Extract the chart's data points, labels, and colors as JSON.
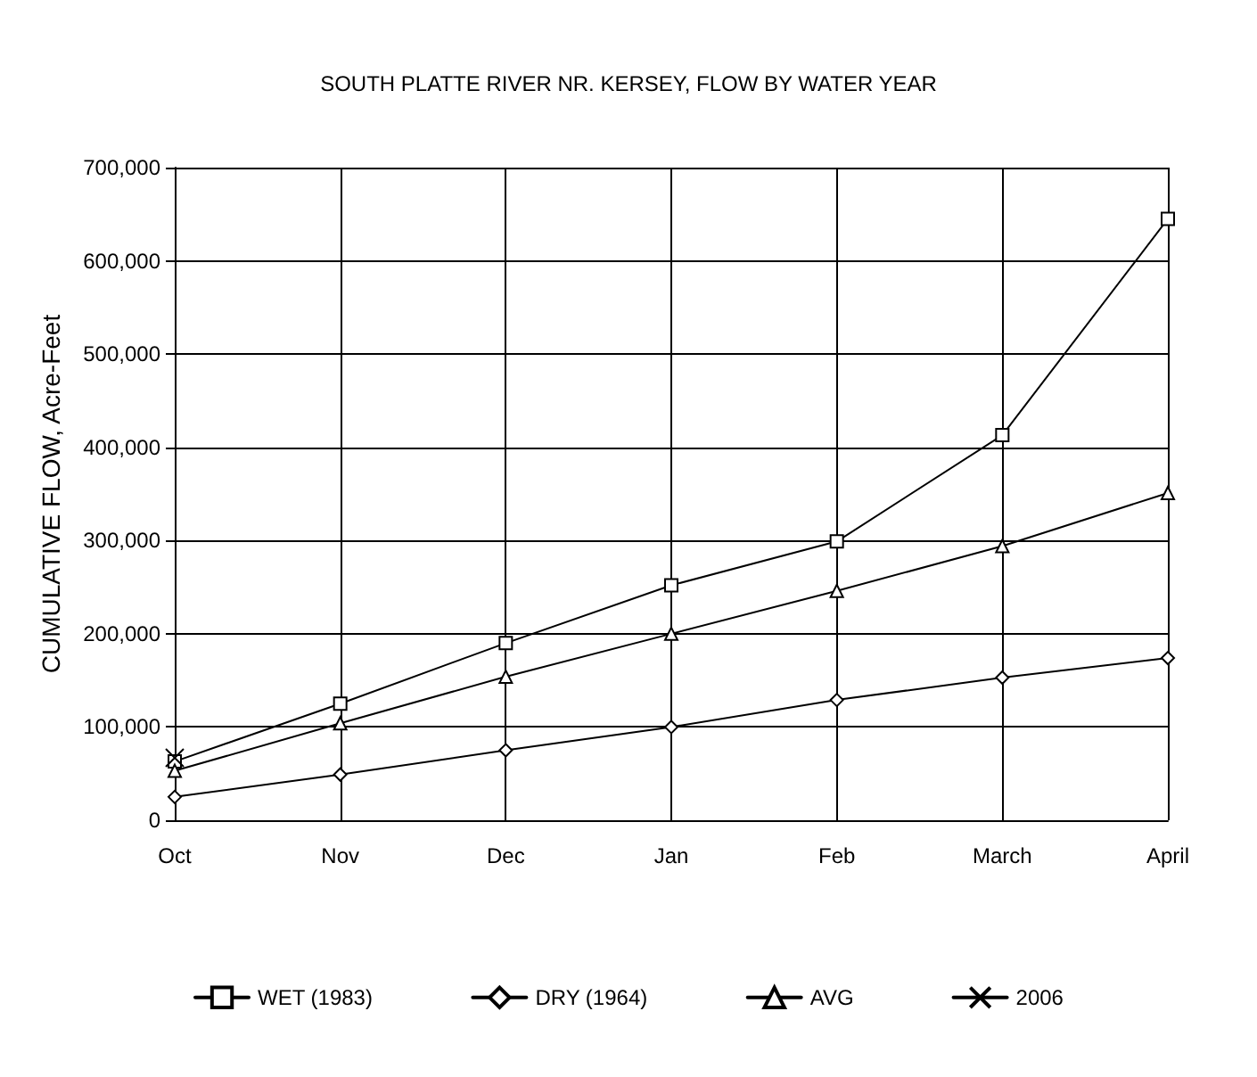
{
  "chart_data": {
    "type": "line",
    "title": "SOUTH PLATTE RIVER NR. KERSEY, FLOW BY WATER YEAR",
    "ylabel": "CUMULATIVE FLOW, Acre-Feet",
    "categories": [
      "Oct",
      "Nov",
      "Dec",
      "Jan",
      "Feb",
      "March",
      "April"
    ],
    "series": [
      {
        "name": "WET (1983)",
        "color": "#000000",
        "marker": "square",
        "values": [
          63000,
          125000,
          190000,
          252000,
          299000,
          413000,
          645000
        ]
      },
      {
        "name": "DRY (1964)",
        "color": "#000000",
        "marker": "diamond",
        "values": [
          25000,
          49000,
          75000,
          100000,
          129000,
          153000,
          174000
        ]
      },
      {
        "name": "AVG",
        "color": "#000000",
        "marker": "triangle",
        "values": [
          53000,
          104000,
          154000,
          200000,
          246000,
          294000,
          351000
        ]
      },
      {
        "name": "2006",
        "color": "#000000",
        "marker": "cross",
        "values": [
          67000,
          null,
          null,
          null,
          null,
          null,
          null
        ]
      }
    ],
    "ylim": [
      0,
      700000
    ],
    "yticks": [
      0,
      {
        "value": 100000,
        "label": "100,000"
      },
      {
        "value": 200000,
        "label": "200,000"
      },
      {
        "value": 300000,
        "label": "300,000"
      },
      {
        "value": 400000,
        "label": "400,000"
      },
      {
        "value": 500000,
        "label": "500,000"
      },
      {
        "value": 600000,
        "label": "600,000"
      },
      {
        "value": 700000,
        "label": "700,000"
      }
    ],
    "grid": true,
    "legend": "bottom",
    "line_style": "solid"
  }
}
